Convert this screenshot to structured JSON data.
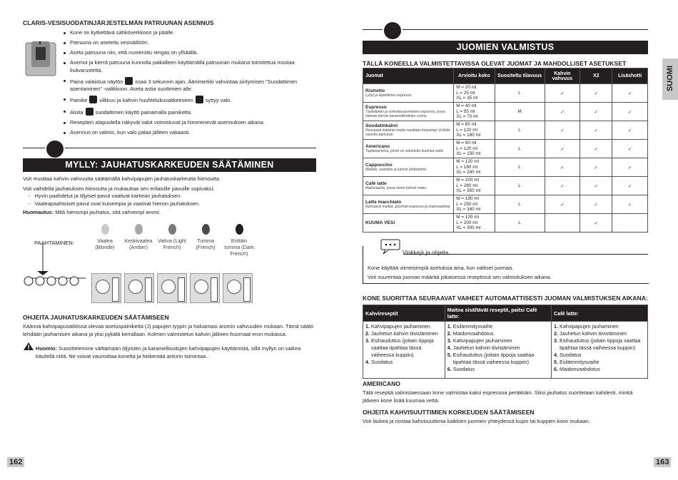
{
  "left": {
    "claris": {
      "title": "CLARIS-VESISUODATINJÄRJESTELMÄN PATRUUNAN ASENNUS",
      "steps": [
        "Kone on kytkettävä sähköverkkoon ja päälle.",
        "Patruuna on asetettu vesisäiliöön.",
        "Aseta patruuna niin, että numeroitu rengas on ylhäällä.",
        "Asemoi ja kierrä patruuna kunnolla paikalleen käyttämällä patruunan mukana toimitettua mustaa lisävarustetta.",
        [
          "Paina valaistua näytön",
          "osaa 3 sekunnin ajan. Äänimerkki vahvistaa siirtymisen \"Suodattimen asentaminen\" -valikkoon. Aseta astia suuttimien alle."
        ],
        [
          "Painike",
          "vilkkuu ja kahvin huuhtelukuvakkeeseen",
          "syttyy valo."
        ],
        [
          "Aloita",
          "suodattimen käyttö painamalla painiketta."
        ],
        "Reseptien alapuolella näkyvät valot voimistuvat ja himmenevät asennuksen aikana.",
        "Asennus on valmis, kun valo palaa jälleen vakaasti."
      ]
    },
    "grinder": {
      "title": "MYLLY: JAUHATUSKARKEUDEN SÄÄTÄMINEN",
      "intro": "Voit muuttaa kahvin vahvuutta säätämällä kahvipapujen jauhatuskarkeutta hienoutta.",
      "intro2": "Voit vaihdella jauhatuksen hienoutta ja mukauttaa sen erilaisille pavuille sopivaksi:",
      "bullets": [
        "Hyvin paahdetut ja öljyiset pavut vaativat karkean jauhatuksen.",
        "Vaaleapaahtoiset pavut ovat kuivempia ja vaativat hienon jauhatuksen."
      ],
      "note_label": "Huomautus:",
      "note": "Mitä hienompi jauhatus, sitä vahvempi aromi.",
      "roast_label": "PAAHTAMINEN:",
      "roasts": [
        "Vaalea (Blonde)",
        "Keskivaalea (Amber)",
        "Vahva (Light French)",
        "Tumma (French)",
        "Erittäin tumma (Dark French)"
      ],
      "instructions_title": "OHJEITA JAUHATUSKARKEUDEN SÄÄTÄMISEEN",
      "instructions": "Käännä kahvipapusäiliössä olevaa asetuspainiketta (J)  papujen tyypin ja haluamasi aromin vahvuuden mukaan. Tämä säätö tehdään jauhamisen aikana ja yksi pykälä kerrallaan. Kolmen valmistetun kahvin jälkeen huomaat eron mukassa.",
      "warning_label": "Huomio:",
      "warning": "Suosittelemme välttämään öljyisten ja karamellisoitujen kahvipapujen käyttämistä, sillä myllyn on vaikea käsitellä niitä. Ne voivat vaurioittaa konetta ja heikentää anturin toimintaa."
    },
    "page_number": "162"
  },
  "right": {
    "title": "JUOMIEN VALMISTUS",
    "side_tab": "SUOMI",
    "table_title": "TÄLLÄ KONEELLA VALMISTETTAVISSA OLEVAT JUOMAT JA MAHDOLLISET ASETUKSET",
    "table": {
      "headers": [
        "Juomat",
        "Arvioitu koko",
        "Suositeltu tilavuus",
        "Kahvin vahvuus",
        "X2",
        "Lisäshotti"
      ],
      "rows": [
        {
          "name": "Ristretto",
          "desc": "Lyhyt ja täyteläinen espresso",
          "sizes": [
            "M = 20 ml",
            "L = 25 ml",
            "XL = 35 ml"
          ],
          "volume": "L",
          "strength": "✓",
          "x2": "✓",
          "shot": "✓"
        },
        {
          "name": "Espresso",
          "desc": "Täyteläinen ja voimakasaromiinen espresso, jossa hieman karvas karamellimäinen crema",
          "sizes": [
            "M = 40 ml",
            "L = 55 ml",
            "XL = 70 ml"
          ],
          "volume": "M",
          "strength": "✓",
          "x2": "✓",
          "shot": "✓"
        },
        {
          "name": "Suodatinkahvi",
          "desc": "Runsaasti kofeiinia mutta maultaan kevyempi. Erittäin suosittu aamuisin",
          "sizes": [
            "M = 80 ml",
            "L = 120 ml",
            "XL = 180 ml"
          ],
          "volume": "L",
          "strength": "✓",
          "x2": "✓",
          "shot": "✓"
        },
        {
          "name": "Americano",
          "desc": "Tuplaespresso, johon on sekoitettu kuumaa vettä",
          "sizes": [
            "M = 90 ml",
            "L = 120 ml",
            "XL = 150 ml"
          ],
          "volume": "L",
          "strength": "✓",
          "x2": "✓",
          "shot": "✓"
        },
        {
          "name": "Cappuccino",
          "desc": "Maidon, vaahdon ja kahvin yhdistelmä",
          "sizes": [
            "M = 120 ml",
            "L = 180 ml",
            "XL = 240 ml"
          ],
          "volume": "L",
          "strength": "✓",
          "x2": "✓",
          "shot": "✓"
        },
        {
          "name": "Café latte",
          "desc": "Maitovaahto, jossa hento kahvin maku",
          "sizes": [
            "M = 200 ml",
            "L = 280 ml",
            "XL = 350 ml"
          ],
          "volume": "L",
          "strength": "✓",
          "x2": "✓",
          "shot": "✓"
        },
        {
          "name": "Latte macchiato",
          "desc": "Runsaasti maitoa, gourmet-espresso ja maitovaahtoa",
          "sizes": [
            "M = 190 ml",
            "L = 250 ml",
            "XL = 340 ml"
          ],
          "volume": "L",
          "strength": "✓",
          "x2": "✓",
          "shot": "✓"
        },
        {
          "name": "KUUMA VESI",
          "sizes": [
            "M = 100 ml",
            "L = 200 ml",
            "XL = 300 ml"
          ],
          "volume": "L",
          "x2": "✓"
        }
      ]
    },
    "tips": {
      "title": "Vinkkejä ja ohjeita",
      "lines": [
        "Kone käyttää viimeisimpiä asetuksia aina, kun valitset juomaa.",
        "Voit suurentaa juoman määrää jokaisessa reseptissä sen valmistuksen aikana."
      ]
    },
    "auto_title": "KONE SUORITTAA SEURAAVAT VAIHEET AUTOMAATTISESTI JUOMAN VALMISTUKSEN AIKANA:",
    "auto_columns": [
      {
        "header": "Kahvireseptit",
        "steps": [
          [
            "1.",
            "Kahvipapujen jauhaminen"
          ],
          [
            "2.",
            "Jauhetun kahvin tiivistäminen"
          ],
          [
            "3.",
            "Esihauduttus (joitain tippoja saattaa tipahtaa tässä vaiheessa kuppiin)"
          ],
          [
            "4.",
            "Suodatus"
          ]
        ]
      },
      {
        "header": "Maitoa sisältävät reseptit, paitsi Café latte:",
        "steps": [
          [
            "1.",
            "Esilämmitysvaihe"
          ],
          [
            "2.",
            "Maidonvaahdotus"
          ],
          [
            "3.",
            "Kahvipapujen jauhaminen"
          ],
          [
            "4.",
            "Jauhetun kahvin tiivistäminen"
          ],
          [
            "5.",
            "Esihauduttus (joitain tippoja saattaa tipahtaa tässä vaiheessa kuppiin)"
          ],
          [
            "6.",
            "Suodatus"
          ]
        ]
      },
      {
        "header": "Café latte:",
        "steps": [
          [
            "1.",
            "Kahvipapujen jauhaminen"
          ],
          [
            "2.",
            "Jauhetun kahvin tiivistäminen"
          ],
          [
            "3.",
            "Esihauduttus (joitain tippoja saattaa tipahtaa tässä vaiheessa kuppiin)"
          ],
          [
            "4.",
            "Suodatus"
          ],
          [
            "5.",
            "Esilämmitysvaihe"
          ],
          [
            "6.",
            "Maidonvaahdotus"
          ]
        ]
      }
    ],
    "americano": {
      "title": "AMERICANO",
      "text": "Tätä reseptiä valmistaessaan kone valmistaa kaksi espressoa peräkkäin. Siksi jauhatus suoritetaan kahdesti, minkä jälkeen kone lisää kuumaa vettä."
    },
    "spout": {
      "title": "OHJEITA KAHVISUUTTIMIEN KORKEUDEN SÄÄTÄMISEEN",
      "text": "Voit laskea ja nostaa kahvisuuttimia kaikkien juomien yhteydessä kupin tai kuppien koon mukaan."
    },
    "page_number": "163"
  }
}
